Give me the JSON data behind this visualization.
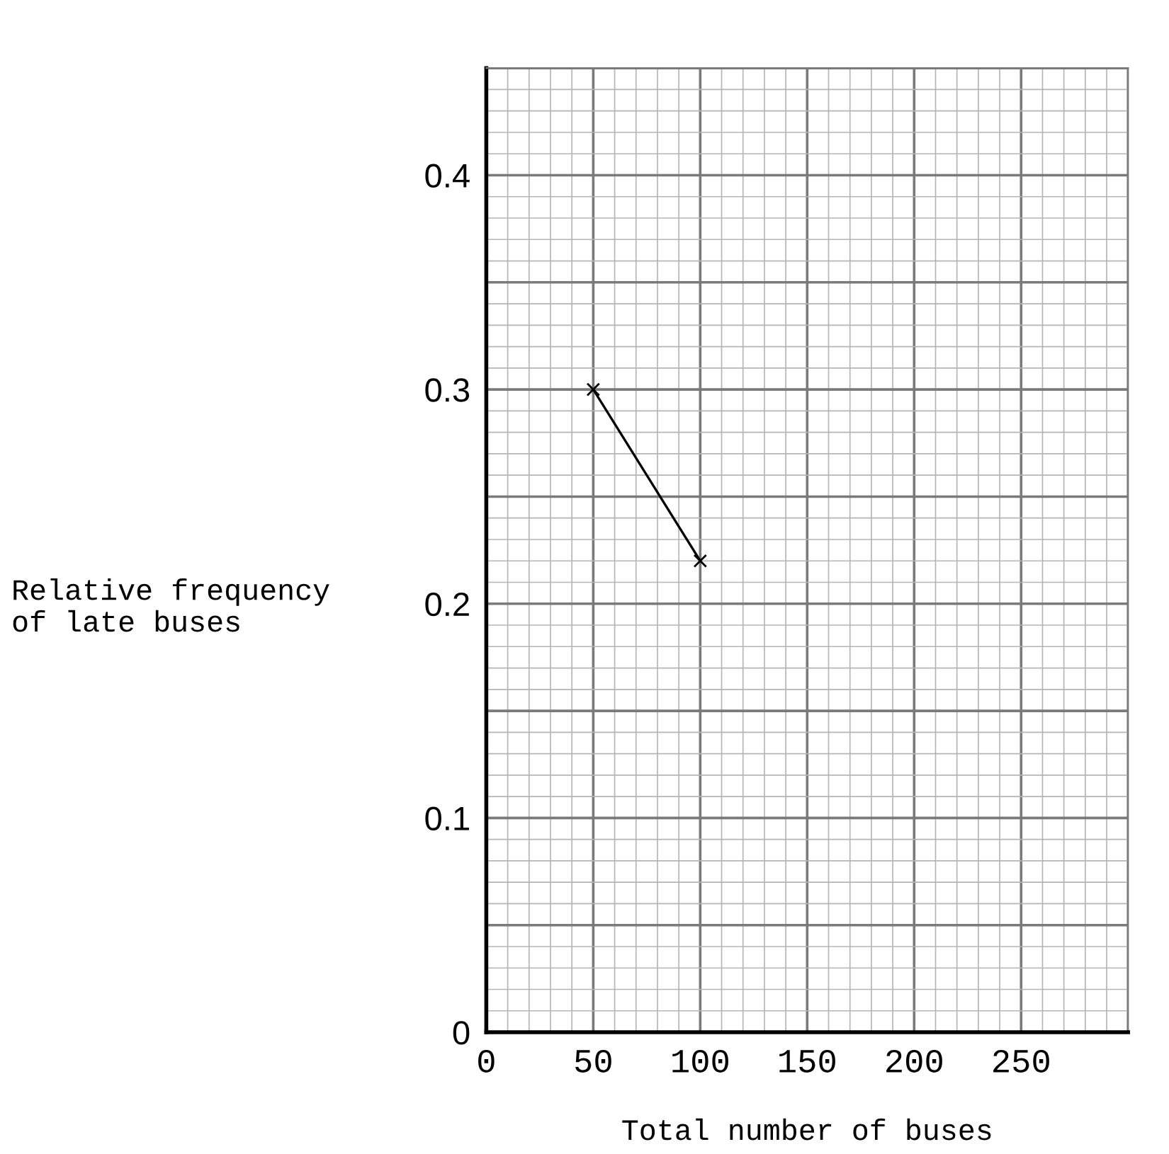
{
  "chart_data": {
    "type": "line",
    "xlabel": "Total number of buses",
    "ylabel": "Relative frequency\nof late buses",
    "x": [
      50,
      100
    ],
    "series": [
      {
        "color": "#000000",
        "values": [
          0.3,
          0.22
        ]
      }
    ],
    "xlim": [
      0,
      300
    ],
    "xticks": [
      0,
      50,
      100,
      150,
      200,
      250
    ],
    "ylim": [
      0,
      0.45
    ],
    "yticks": [
      0,
      0.1,
      0.2,
      0.3,
      0.4
    ],
    "grid": true,
    "marker": "cross",
    "line_style": "solid",
    "legend": false
  }
}
